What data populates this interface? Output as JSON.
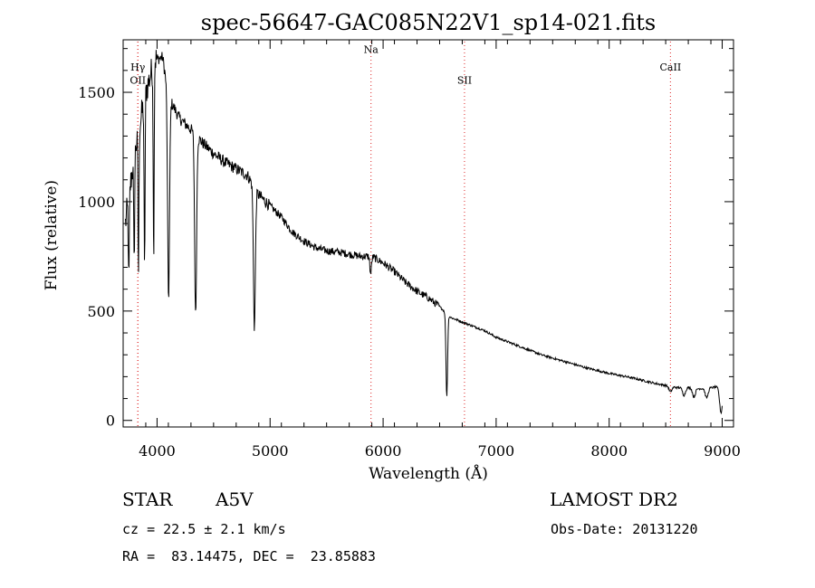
{
  "chart_data": {
    "type": "line",
    "title": "spec-56647-GAC085N22V1_sp14-021.fits",
    "xlabel": "Wavelength (Å)",
    "ylabel": "Flux (relative)",
    "xlim": [
      3700,
      9100
    ],
    "ylim": [
      -30,
      1740
    ],
    "x_ticks": [
      4000,
      5000,
      6000,
      7000,
      8000,
      9000
    ],
    "y_ticks": [
      0,
      500,
      1000,
      1500
    ],
    "grid": false,
    "continuum": {
      "x": [
        3720,
        3800,
        3900,
        3980,
        4050,
        4100,
        4200,
        4300,
        4400,
        4500,
        4600,
        4700,
        4800,
        4900,
        5000,
        5100,
        5200,
        5300,
        5400,
        5500,
        5600,
        5700,
        5800,
        5900,
        6000,
        6100,
        6200,
        6300,
        6400,
        6500,
        6600,
        6700,
        6800,
        6900,
        7000,
        7200,
        7400,
        7600,
        7800,
        8000,
        8200,
        8400,
        8500,
        8600,
        8700,
        8800,
        8900,
        8990
      ],
      "y": [
        900,
        1220,
        1500,
        1650,
        1660,
        1480,
        1380,
        1330,
        1270,
        1220,
        1180,
        1150,
        1120,
        1030,
        980,
        930,
        860,
        820,
        790,
        775,
        770,
        760,
        750,
        750,
        720,
        680,
        630,
        590,
        560,
        520,
        470,
        450,
        430,
        410,
        380,
        340,
        300,
        270,
        240,
        215,
        195,
        170,
        160,
        150,
        150,
        145,
        150,
        155
      ]
    },
    "absorption_lines": [
      {
        "x": 3750,
        "depth": 400
      },
      {
        "x": 3797,
        "depth": 500
      },
      {
        "x": 3835,
        "depth": 650
      },
      {
        "x": 3889,
        "depth": 800
      },
      {
        "x": 3970,
        "depth": 900
      },
      {
        "x": 4102,
        "depth": 920
      },
      {
        "x": 4341,
        "depth": 830
      },
      {
        "x": 4861,
        "depth": 640
      },
      {
        "x": 5890,
        "depth": 80
      },
      {
        "x": 6563,
        "depth": 380
      },
      {
        "x": 8542,
        "depth": 25
      },
      {
        "x": 8662,
        "depth": 35
      },
      {
        "x": 8750,
        "depth": 40
      },
      {
        "x": 8863,
        "depth": 45
      },
      {
        "x": 8990,
        "depth": 120
      }
    ],
    "line_markers": [
      {
        "label": "OII",
        "x": 3830,
        "label_y": 1540
      },
      {
        "label": "Hγ",
        "x": 3830,
        "label_y": 1600
      },
      {
        "label": "Na",
        "x": 5893,
        "label_y": 1680
      },
      {
        "label": "SII",
        "x": 6720,
        "label_y": 1540
      },
      {
        "label": "CaII",
        "x": 8542,
        "label_y": 1600
      }
    ]
  },
  "info": {
    "object_type": "STAR",
    "subclass": "A5V",
    "survey": "LAMOST DR2",
    "redshift": "cz = 22.5 ± 2.1 km/s",
    "obs_date": "Obs-Date: 20131220",
    "coords": "RA =  83.14475, DEC =  23.85883"
  }
}
